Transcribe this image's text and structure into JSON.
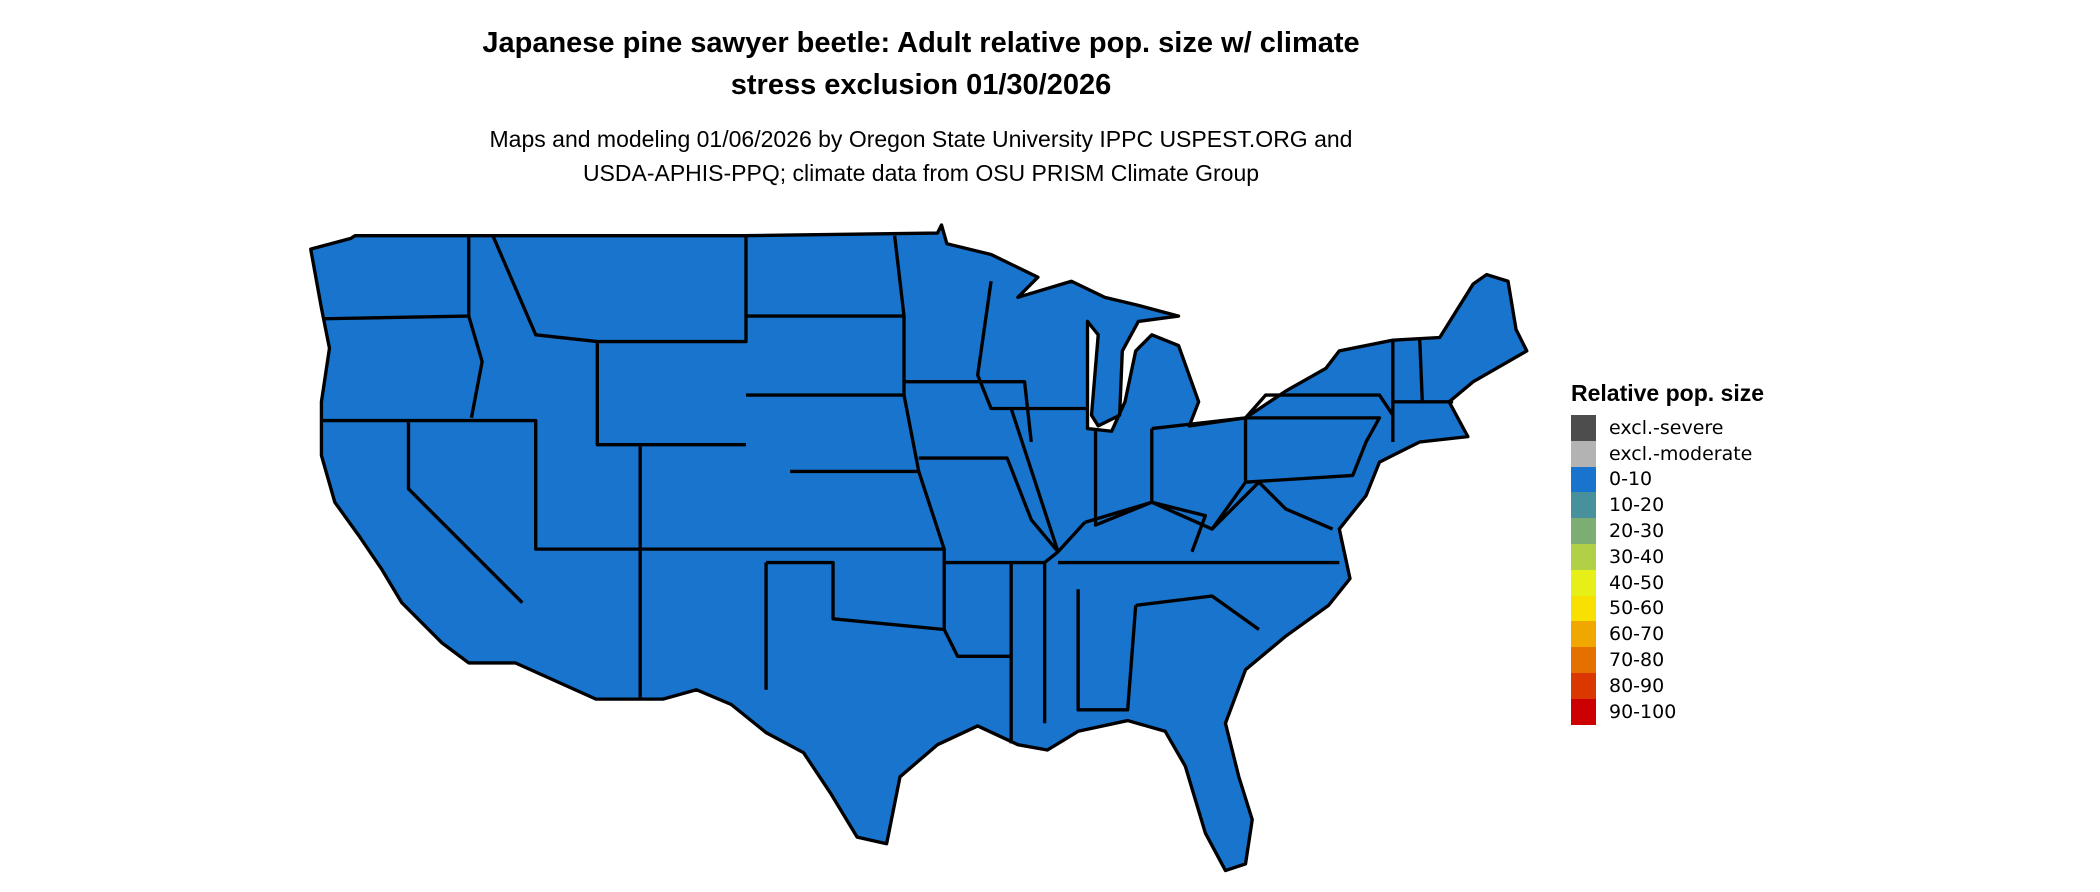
{
  "title": {
    "line1": "Japanese pine sawyer beetle: Adult relative pop. size w/ climate",
    "line2": "stress exclusion 01/30/2026"
  },
  "subtitle": {
    "line1": "Maps and modeling 01/06/2026 by Oregon State University IPPC USPEST.ORG and",
    "line2": "USDA-APHIS-PPQ; climate data from OSU PRISM Climate Group"
  },
  "map": {
    "region": "Contiguous United States",
    "fill_category": "0-10",
    "fill_color": "#1874CD",
    "border_color": "#000000"
  },
  "legend": {
    "title": "Relative pop. size",
    "items": [
      {
        "label": "excl.-severe",
        "color": "#4D4D4D"
      },
      {
        "label": "excl.-moderate",
        "color": "#B3B3B3"
      },
      {
        "label": "0-10",
        "color": "#1874CD"
      },
      {
        "label": "10-20",
        "color": "#48919C"
      },
      {
        "label": "20-30",
        "color": "#7CAE74"
      },
      {
        "label": "30-40",
        "color": "#B2D047"
      },
      {
        "label": "40-50",
        "color": "#E6F016"
      },
      {
        "label": "50-60",
        "color": "#F8E000"
      },
      {
        "label": "60-70",
        "color": "#F0A800"
      },
      {
        "label": "70-80",
        "color": "#E57000"
      },
      {
        "label": "80-90",
        "color": "#DA3800"
      },
      {
        "label": "90-100",
        "color": "#CD0000"
      }
    ]
  }
}
